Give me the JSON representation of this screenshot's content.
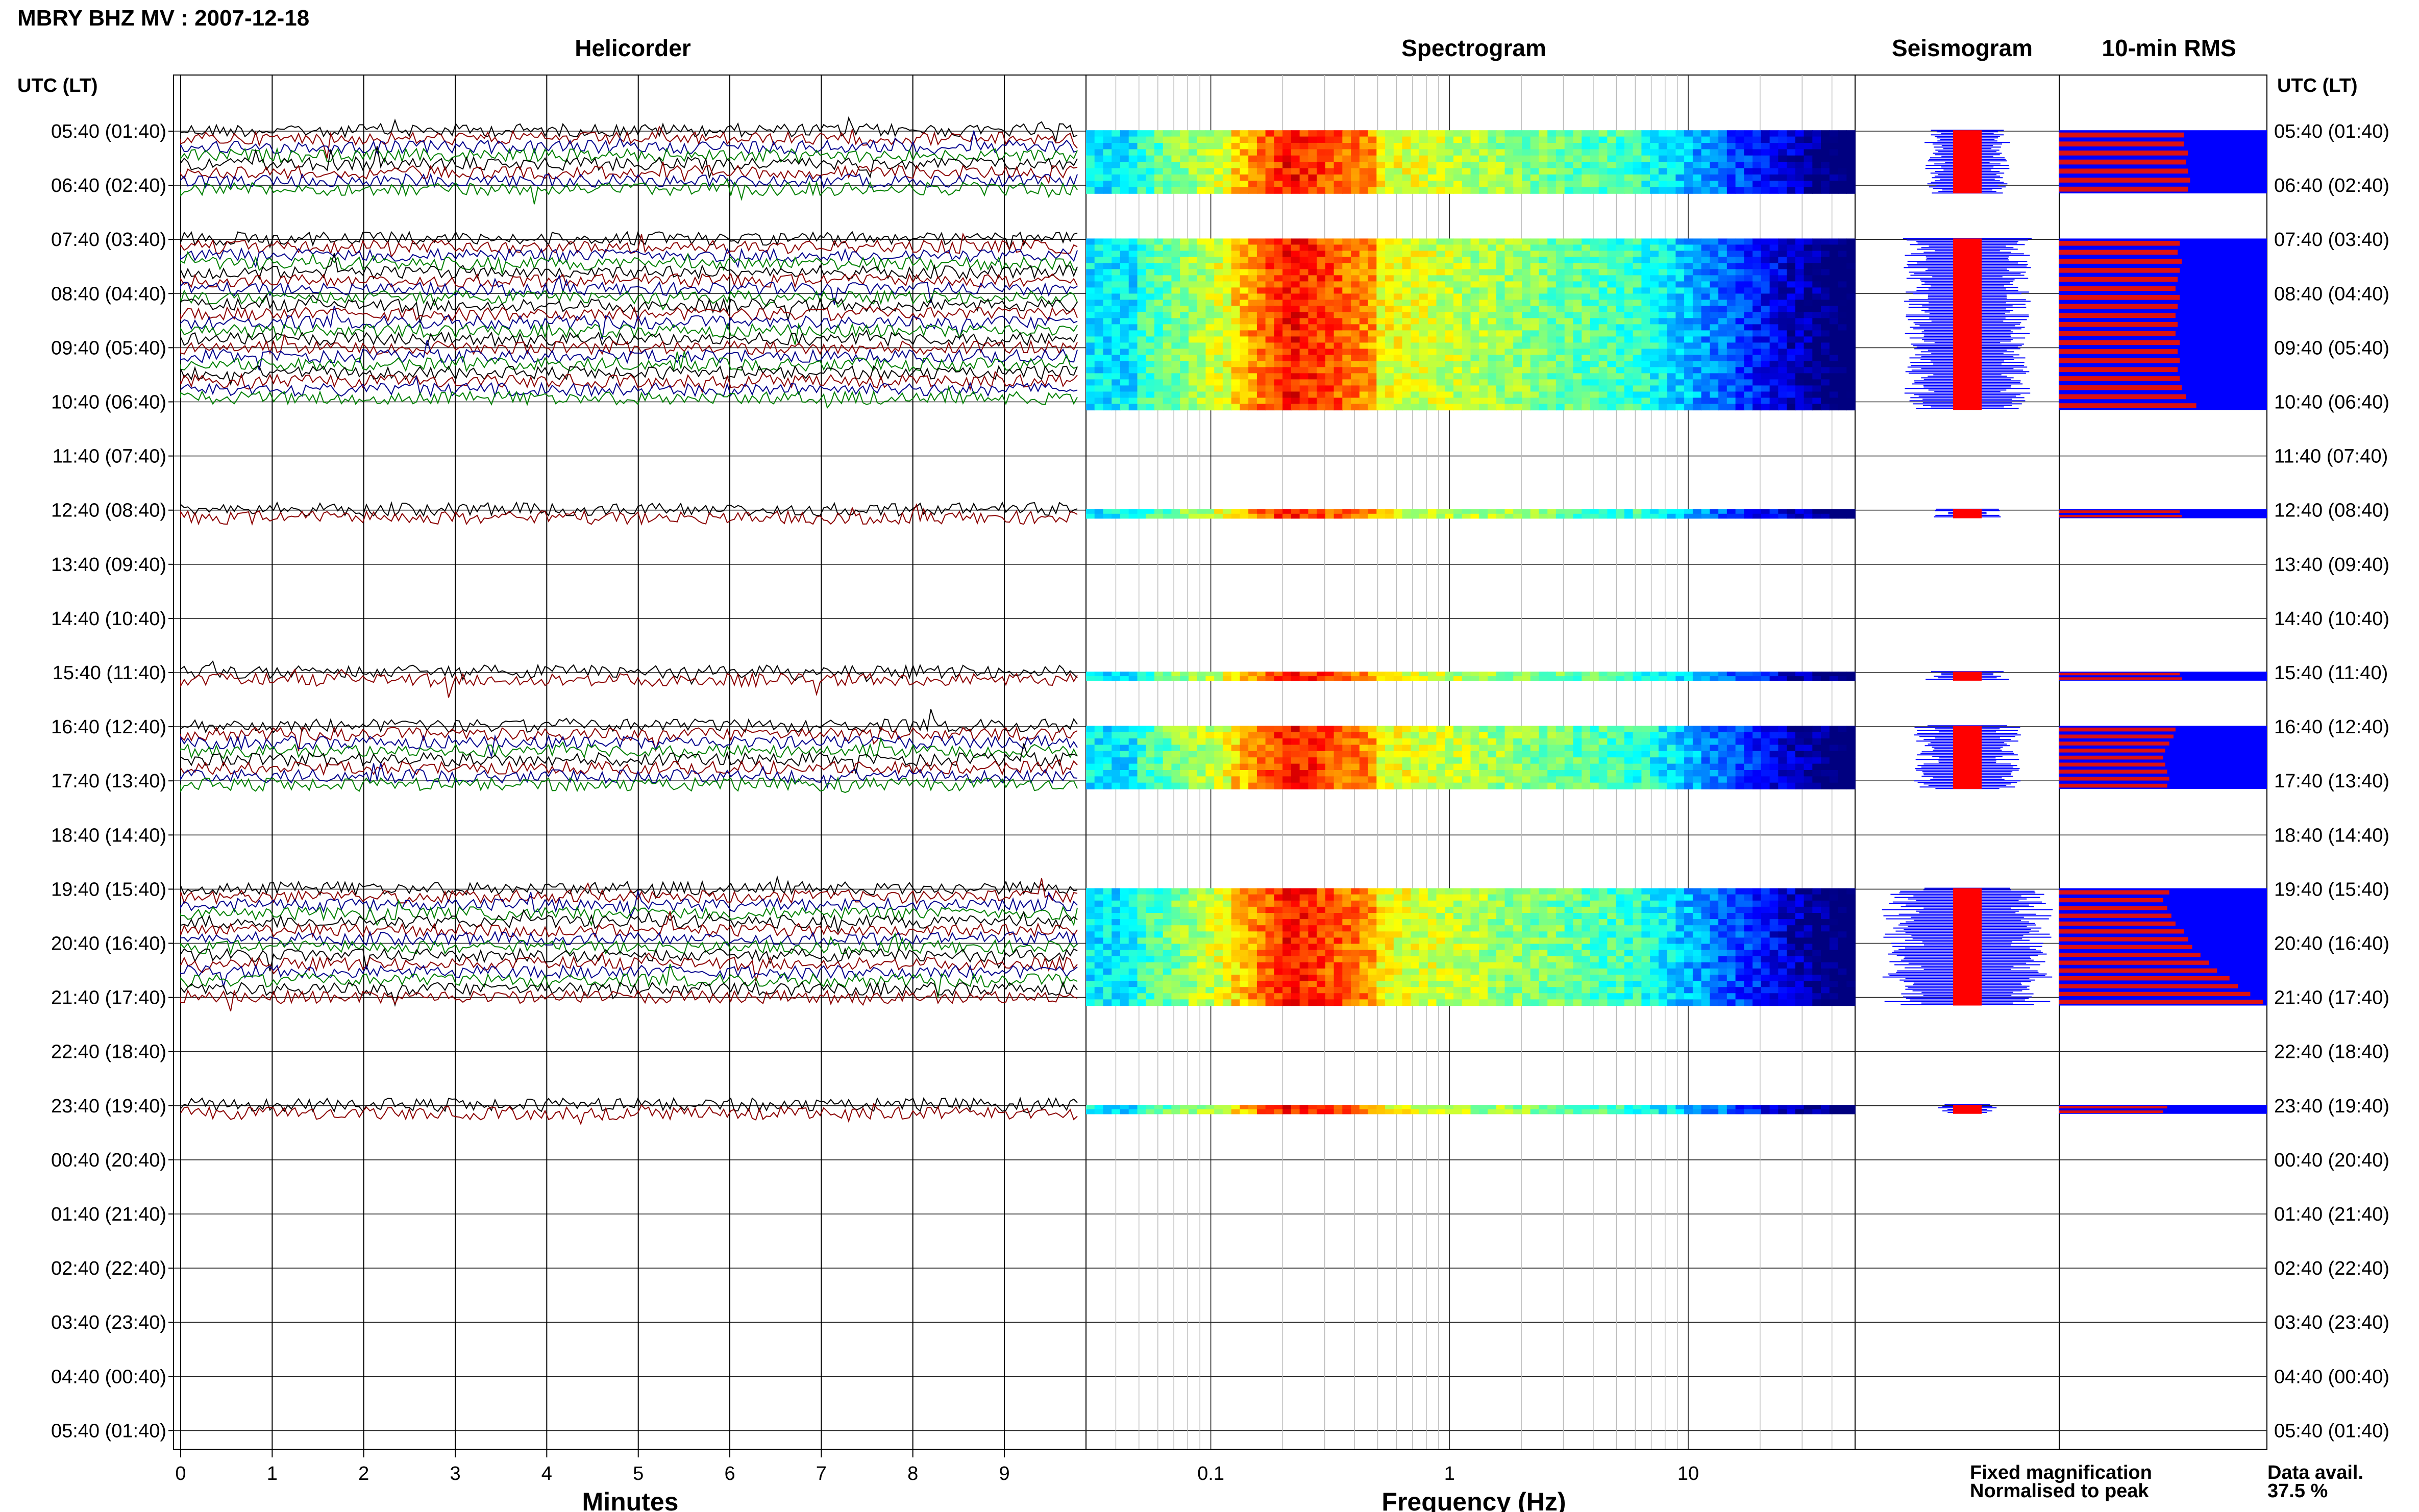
{
  "header": {
    "station_title": "MBRY BHZ MV : 2007-12-18",
    "utc_lt_label_left": "UTC (LT)",
    "utc_lt_label_right": "UTC (LT)"
  },
  "panels": {
    "helicorder": {
      "title": "Helicorder",
      "xlabel": "Minutes"
    },
    "spectrogram": {
      "title": "Spectrogram",
      "xlabel": "Frequency (Hz)"
    },
    "seismogram": {
      "title": "Seismogram"
    },
    "rms": {
      "title": "10-min RMS"
    }
  },
  "legend": {
    "fixed_magnification": "Fixed magnification",
    "normalised_to_peak": "Normalised to peak",
    "data_avail_label": "Data avail.",
    "data_avail_value": "37.5 %"
  },
  "colors": {
    "trace_cycle": [
      "#000000",
      "#8b0000",
      "#00008b",
      "#008000"
    ],
    "fixed_magnification": "#0000ff",
    "normalised_to_peak": "#ff0000",
    "rms_background": "#0000ff",
    "rms_bar": "#dd1111",
    "spectrogram_colormap": "jet"
  },
  "chart_data": [
    {
      "type": "line",
      "name": "helicorder",
      "title": "Helicorder",
      "xlabel": "Minutes",
      "ylabel": "UTC (LT)",
      "xlim": [
        0,
        10
      ],
      "x_ticks": [
        0,
        1,
        2,
        3,
        4,
        5,
        6,
        7,
        8,
        9
      ],
      "y_ticks": [
        "05:40 (01:40)",
        "06:40 (02:40)",
        "07:40 (03:40)",
        "08:40 (04:40)",
        "09:40 (05:40)",
        "10:40 (06:40)",
        "11:40 (07:40)",
        "12:40 (08:40)",
        "13:40 (09:40)",
        "14:40 (10:40)",
        "15:40 (11:40)",
        "16:40 (12:40)",
        "17:40 (13:40)",
        "18:40 (14:40)",
        "19:40 (15:40)",
        "20:40 (16:40)",
        "21:40 (17:40)",
        "22:40 (18:40)",
        "23:40 (19:40)",
        "00:40 (20:40)",
        "01:40 (21:40)",
        "02:40 (22:40)",
        "03:40 (23:40)",
        "04:40 (00:40)",
        "05:40 (01:40)"
      ],
      "data_blocks": [
        {
          "start": "05:40",
          "end": "06:40"
        },
        {
          "start": "07:40",
          "end": "10:40"
        },
        {
          "start": "12:40",
          "end": "12:40"
        },
        {
          "start": "15:40",
          "end": "15:40"
        },
        {
          "start": "16:40",
          "end": "17:40"
        },
        {
          "start": "19:40",
          "end": "21:40"
        },
        {
          "start": "23:40",
          "end": "23:40"
        }
      ],
      "grid": true
    },
    {
      "type": "heatmap",
      "name": "spectrogram",
      "title": "Spectrogram",
      "xlabel": "Frequency (Hz)",
      "x_scale": "log",
      "xlim": [
        0.03,
        50
      ],
      "x_ticks": [
        0.1,
        1,
        10
      ],
      "colormap": "jet",
      "grid": true
    },
    {
      "type": "line",
      "name": "seismogram",
      "title": "Seismogram",
      "series": [
        {
          "name": "Fixed magnification"
        },
        {
          "name": "Normalised to peak"
        }
      ]
    },
    {
      "type": "bar",
      "name": "rms",
      "title": "10-min RMS",
      "orientation": "horizontal",
      "blocks": [
        {
          "start": "05:40",
          "fractions": [
            0.6,
            0.6,
            0.62,
            0.61,
            0.62,
            0.63,
            0.62
          ]
        },
        {
          "start": "07:40",
          "fractions": [
            0.58,
            0.57,
            0.59,
            0.58,
            0.57,
            0.56,
            0.58,
            0.57,
            0.56,
            0.57,
            0.56,
            0.58,
            0.57,
            0.58,
            0.57,
            0.58,
            0.59,
            0.61,
            0.66
          ]
        },
        {
          "start": "12:40",
          "fractions": [
            0.58,
            0.59
          ]
        },
        {
          "start": "15:40",
          "fractions": [
            0.58,
            0.59
          ]
        },
        {
          "start": "16:40",
          "fractions": [
            0.56,
            0.55,
            0.53,
            0.51,
            0.5,
            0.51,
            0.52,
            0.53,
            0.52
          ]
        },
        {
          "start": "19:40",
          "fractions": [
            0.53,
            0.5,
            0.52,
            0.54,
            0.56,
            0.6,
            0.62,
            0.64,
            0.68,
            0.72,
            0.76,
            0.82,
            0.86,
            0.92,
            0.98
          ]
        },
        {
          "start": "23:40",
          "fractions": [
            0.52,
            0.5
          ]
        }
      ]
    }
  ]
}
